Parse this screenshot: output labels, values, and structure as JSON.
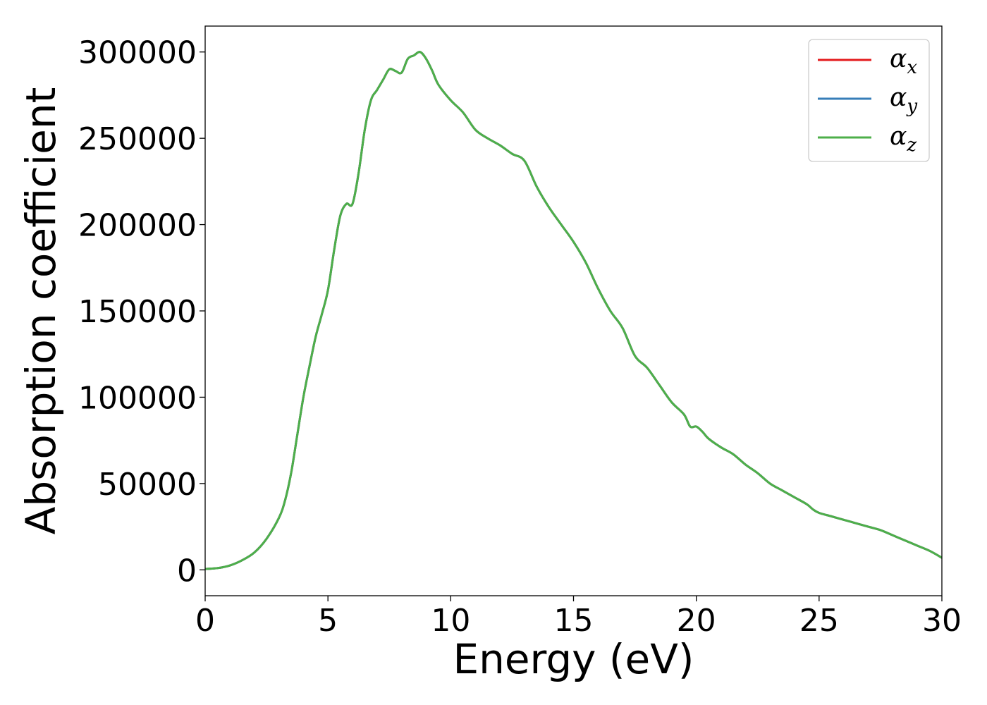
{
  "chart_data": {
    "type": "line",
    "title": "",
    "xlabel": "Energy (eV)",
    "ylabel": "Absorption coefficient",
    "xlim": [
      0,
      30
    ],
    "ylim": [
      -15000,
      315000
    ],
    "xticks": [
      0,
      5,
      10,
      15,
      20,
      25,
      30
    ],
    "yticks": [
      0,
      50000,
      100000,
      150000,
      200000,
      250000,
      300000
    ],
    "grid": false,
    "legend_position": "top-right",
    "x": [
      0,
      0.5,
      1,
      1.5,
      2,
      2.5,
      3,
      3.25,
      3.5,
      3.75,
      4,
      4.25,
      4.5,
      4.75,
      5,
      5.25,
      5.5,
      5.75,
      6,
      6.25,
      6.5,
      6.75,
      7,
      7.25,
      7.5,
      7.75,
      8,
      8.25,
      8.5,
      8.75,
      9,
      9.25,
      9.5,
      10,
      10.5,
      11,
      11.5,
      12,
      12.5,
      13,
      13.5,
      14,
      14.5,
      15,
      15.5,
      16,
      16.5,
      17,
      17.5,
      18,
      18.5,
      19,
      19.5,
      19.75,
      20,
      20.25,
      20.5,
      21,
      21.5,
      22,
      22.5,
      23,
      23.5,
      24,
      24.5,
      24.75,
      25,
      25.5,
      26,
      26.5,
      27,
      27.5,
      28,
      28.5,
      29,
      29.5,
      30
    ],
    "series": [
      {
        "name": "α",
        "subscript": "x",
        "color": "#e41a1c",
        "values": [
          500,
          1000,
          2500,
          5500,
          10000,
          18000,
          30000,
          40000,
          56000,
          78000,
          100000,
          118000,
          135000,
          148000,
          162000,
          185000,
          205000,
          212000,
          212000,
          230000,
          255000,
          272000,
          278000,
          284000,
          290000,
          289000,
          288000,
          296000,
          298000,
          300000,
          296000,
          289000,
          281000,
          272000,
          265000,
          255000,
          250000,
          246000,
          241000,
          237000,
          222000,
          210000,
          200000,
          190000,
          178000,
          163000,
          150000,
          140000,
          124000,
          117000,
          107000,
          97000,
          90000,
          83000,
          83000,
          80000,
          76000,
          71000,
          67000,
          61000,
          56000,
          50000,
          46000,
          42000,
          38000,
          35000,
          33000,
          31000,
          29000,
          27000,
          25000,
          23000,
          20000,
          17000,
          14000,
          11000,
          7000
        ]
      },
      {
        "name": "α",
        "subscript": "y",
        "color": "#377eb8",
        "values": [
          500,
          1000,
          2500,
          5500,
          10000,
          18000,
          30000,
          40000,
          56000,
          78000,
          100000,
          118000,
          135000,
          148000,
          162000,
          185000,
          205000,
          212000,
          212000,
          230000,
          255000,
          272000,
          278000,
          284000,
          290000,
          289000,
          288000,
          296000,
          298000,
          300000,
          296000,
          289000,
          281000,
          272000,
          265000,
          255000,
          250000,
          246000,
          241000,
          237000,
          222000,
          210000,
          200000,
          190000,
          178000,
          163000,
          150000,
          140000,
          124000,
          117000,
          107000,
          97000,
          90000,
          83000,
          83000,
          80000,
          76000,
          71000,
          67000,
          61000,
          56000,
          50000,
          46000,
          42000,
          38000,
          35000,
          33000,
          31000,
          29000,
          27000,
          25000,
          23000,
          20000,
          17000,
          14000,
          11000,
          7000
        ]
      },
      {
        "name": "α",
        "subscript": "z",
        "color": "#4daf4a",
        "values": [
          500,
          1000,
          2500,
          5500,
          10000,
          18000,
          30000,
          40000,
          56000,
          78000,
          100000,
          118000,
          135000,
          148000,
          162000,
          185000,
          205000,
          212000,
          212000,
          230000,
          255000,
          272000,
          278000,
          284000,
          290000,
          289000,
          288000,
          296000,
          298000,
          300000,
          296000,
          289000,
          281000,
          272000,
          265000,
          255000,
          250000,
          246000,
          241000,
          237000,
          222000,
          210000,
          200000,
          190000,
          178000,
          163000,
          150000,
          140000,
          124000,
          117000,
          107000,
          97000,
          90000,
          83000,
          83000,
          80000,
          76000,
          71000,
          67000,
          61000,
          56000,
          50000,
          46000,
          42000,
          38000,
          35000,
          33000,
          31000,
          29000,
          27000,
          25000,
          23000,
          20000,
          17000,
          14000,
          11000,
          7000
        ]
      }
    ]
  }
}
